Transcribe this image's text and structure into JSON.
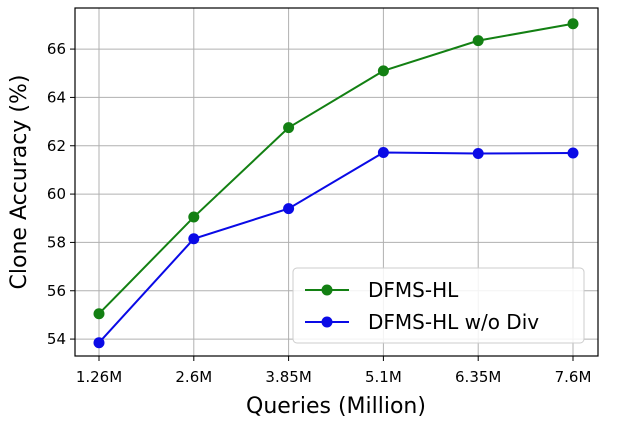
{
  "chart_data": {
    "type": "line",
    "xlabel": "Queries (Million)",
    "ylabel": "Clone Accuracy (%)",
    "categories": [
      "1.26M",
      "2.6M",
      "3.85M",
      "5.1M",
      "6.35M",
      "7.6M"
    ],
    "ylim": [
      53.3,
      67.7
    ],
    "yticks": [
      54,
      56,
      58,
      60,
      62,
      64,
      66
    ],
    "grid": true,
    "legend_position": "bottom-right",
    "series": [
      {
        "name": "DFMS-HL",
        "color": "#138013",
        "values": [
          55.05,
          59.05,
          62.75,
          65.1,
          66.35,
          67.05
        ]
      },
      {
        "name": "DFMS-HL w/o Div",
        "color": "#0a0ae6",
        "values": [
          53.85,
          58.15,
          59.4,
          61.72,
          61.68,
          61.7
        ]
      }
    ]
  }
}
